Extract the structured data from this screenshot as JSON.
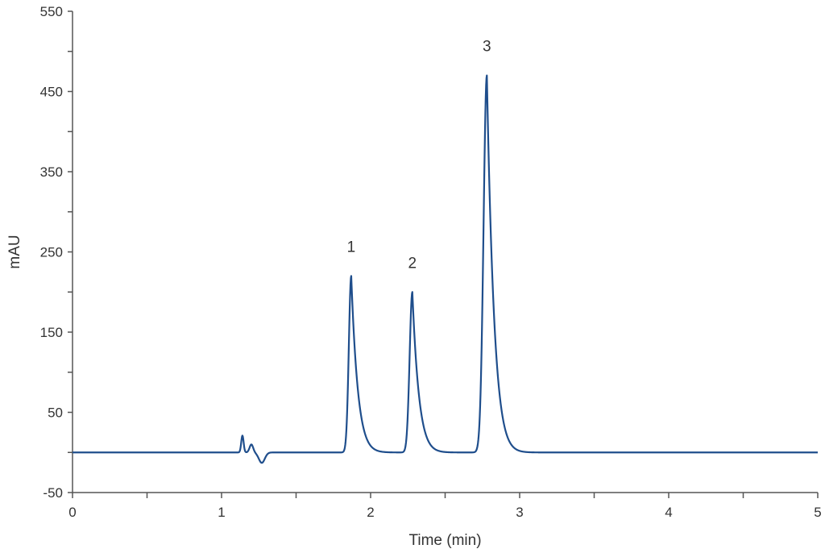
{
  "chart_data": {
    "type": "line",
    "title": "",
    "xlabel": "Time (min)",
    "ylabel": "mAU",
    "xlim": [
      0,
      5
    ],
    "ylim": [
      -50,
      550
    ],
    "x_ticks": [
      0,
      1,
      2,
      3,
      4,
      5
    ],
    "y_ticks": [
      -50,
      50,
      150,
      250,
      350,
      450,
      550
    ],
    "x_tick_labels": [
      "0",
      "1",
      "2",
      "3",
      "4",
      "5"
    ],
    "y_tick_labels": [
      "-50",
      "50",
      "150",
      "250",
      "350",
      "450",
      "550"
    ],
    "grid": false,
    "legend": "none",
    "baseline": 0,
    "series": [
      {
        "color": "#1f4e8c",
        "peaks": [
          {
            "label": "1",
            "x": 1.87,
            "y": 220
          },
          {
            "label": "2",
            "x": 2.28,
            "y": 200
          },
          {
            "label": "3",
            "x": 2.78,
            "y": 470
          }
        ],
        "disturbances": [
          {
            "x": 1.14,
            "y": 21
          },
          {
            "x": 1.2,
            "y": 10
          },
          {
            "x": 1.27,
            "y": -13
          }
        ]
      }
    ]
  }
}
